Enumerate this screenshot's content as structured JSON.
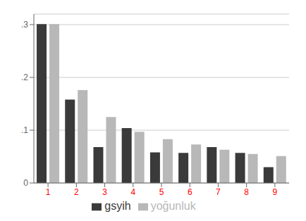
{
  "chart_data": {
    "type": "bar",
    "categories": [
      "1",
      "2",
      "3",
      "4",
      "5",
      "6",
      "7",
      "8",
      "9"
    ],
    "series": [
      {
        "name": "gsyih",
        "color": "#3a3a3a",
        "values": [
          0.301,
          0.158,
          0.068,
          0.104,
          0.058,
          0.057,
          0.068,
          0.057,
          0.03
        ]
      },
      {
        "name": "yoğunluk",
        "color": "#b8b8b8",
        "values": [
          0.301,
          0.176,
          0.125,
          0.097,
          0.083,
          0.073,
          0.063,
          0.055,
          0.051
        ]
      }
    ],
    "ylim": [
      0,
      0.32
    ],
    "yticks": [
      0,
      {
        "value": 0.1,
        "label": ".1"
      },
      {
        "value": 0.2,
        "label": ".2"
      },
      {
        "value": 0.3,
        "label": ".3"
      }
    ],
    "grid": true,
    "legend": "bottom"
  }
}
